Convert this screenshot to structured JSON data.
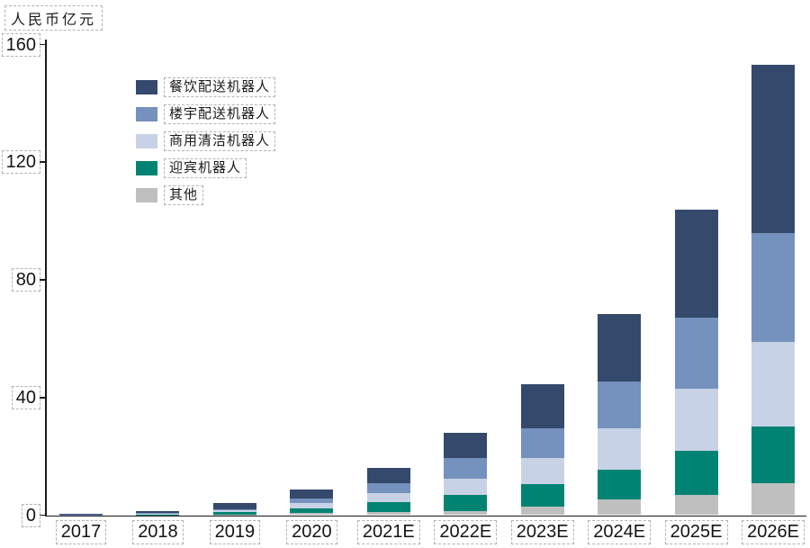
{
  "unit_label": "人民币亿元",
  "legend": [
    {
      "label": "餐饮配送机器人",
      "color": "#34496B"
    },
    {
      "label": "楼宇配送机器人",
      "color": "#7591BD"
    },
    {
      "label": "商用清洁机器人",
      "color": "#C8D2E6"
    },
    {
      "label": "迎宾机器人",
      "color": "#008373"
    },
    {
      "label": "其他",
      "color": "#BFBFBF"
    }
  ],
  "chart_data": {
    "type": "bar",
    "stacked": true,
    "title": "",
    "ylabel": "人民币亿元",
    "xlabel": "",
    "ylim": [
      0,
      160
    ],
    "yticks": [
      "0",
      "40",
      "80",
      "120",
      "160"
    ],
    "ytick_values": [
      0,
      40,
      80,
      120,
      160
    ],
    "grid": false,
    "legend_position": "upper-left-inside",
    "categories": [
      "2017",
      "2018",
      "2019",
      "2020",
      "2021E",
      "2022E",
      "2023E",
      "2024E",
      "2025E",
      "2026E"
    ],
    "series": [
      {
        "name": "餐饮配送机器人",
        "color": "#34496B",
        "values": [
          0.2,
          0.7,
          1.9,
          3.0,
          5.0,
          8.5,
          15.0,
          23.0,
          37.0,
          57.0
        ]
      },
      {
        "name": "楼宇配送机器人",
        "color": "#7591BD",
        "values": [
          0.1,
          0.3,
          0.5,
          1.5,
          3.5,
          7.0,
          10.0,
          16.0,
          24.0,
          37.0
        ]
      },
      {
        "name": "商用清洁机器人",
        "color": "#C8D2E6",
        "values": [
          0.05,
          0.2,
          0.6,
          2.0,
          3.0,
          5.5,
          9.0,
          14.0,
          21.0,
          29.0
        ]
      },
      {
        "name": "迎宾机器人",
        "color": "#008373",
        "values": [
          0.05,
          0.2,
          0.8,
          1.3,
          3.5,
          5.5,
          7.5,
          10.0,
          15.0,
          19.0
        ]
      },
      {
        "name": "其他",
        "color": "#BFBFBF",
        "values": [
          0.05,
          0.1,
          0.2,
          0.9,
          1.0,
          1.5,
          3.0,
          5.5,
          7.0,
          11.0
        ]
      }
    ],
    "totals": [
      0.45,
      1.5,
      4.0,
      8.7,
      16.0,
      28.0,
      44.5,
      68.5,
      104.0,
      153.0
    ]
  }
}
